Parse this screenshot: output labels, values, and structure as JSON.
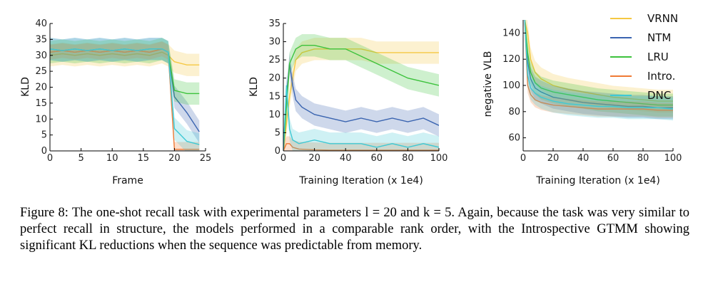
{
  "caption": {
    "label": "Figure 8:",
    "text": "The one-shot recall task with experimental parameters l = 20 and k = 5. Again, because the task was very similar to perfect recall in structure, the models performed in a comparable rank order, with the Introspective GTMM showing significant KL reductions when the sequence was predictable from memory."
  },
  "legend": [
    {
      "name": "VRNN",
      "color": "#f5c842"
    },
    {
      "name": "NTM",
      "color": "#3a64b0"
    },
    {
      "name": "LRU",
      "color": "#3cc23c"
    },
    {
      "name": "Intro.",
      "color": "#f07a35"
    },
    {
      "name": "DNC",
      "color": "#3fc9d4"
    }
  ],
  "chart_data": [
    {
      "type": "line",
      "title": "",
      "xlabel": "Frame",
      "ylabel": "KLD",
      "xlim": [
        0,
        25
      ],
      "ylim": [
        0,
        40
      ],
      "xticks": [
        0,
        5,
        10,
        15,
        20,
        25
      ],
      "yticks": [
        0,
        5,
        10,
        15,
        20,
        25,
        30,
        35,
        40
      ],
      "grid": false,
      "series": [
        {
          "name": "VRNN",
          "color": "#f5c842",
          "x": [
            0,
            2,
            4,
            6,
            8,
            10,
            12,
            14,
            16,
            18,
            19,
            20,
            22,
            24
          ],
          "y": [
            30,
            30.5,
            30,
            30.5,
            30,
            30.5,
            30,
            30.5,
            30,
            31,
            30,
            28,
            27,
            27
          ]
        },
        {
          "name": "NTM",
          "color": "#3a64b0",
          "x": [
            0,
            2,
            4,
            6,
            8,
            10,
            12,
            14,
            16,
            18,
            19,
            20,
            22,
            24
          ],
          "y": [
            32,
            31.5,
            32,
            31.5,
            32,
            31.5,
            32,
            31.5,
            32,
            32,
            31,
            17,
            12,
            6
          ]
        },
        {
          "name": "LRU",
          "color": "#3cc23c",
          "x": [
            0,
            2,
            4,
            6,
            8,
            10,
            12,
            14,
            16,
            18,
            19,
            20,
            22,
            24
          ],
          "y": [
            31,
            31.5,
            31,
            31.5,
            31,
            31.5,
            31,
            31.5,
            31,
            32,
            31,
            19,
            18,
            18
          ]
        },
        {
          "name": "Intro.",
          "color": "#f07a35",
          "x": [
            0,
            2,
            4,
            6,
            8,
            10,
            12,
            14,
            16,
            18,
            19,
            20,
            22,
            24
          ],
          "y": [
            31,
            31.5,
            31,
            31.5,
            31,
            31.5,
            31,
            31.5,
            31,
            32,
            31,
            0.5,
            0.5,
            0.5
          ]
        },
        {
          "name": "DNC",
          "color": "#3fc9d4",
          "x": [
            0,
            2,
            4,
            6,
            8,
            10,
            12,
            14,
            16,
            18,
            19,
            20,
            22,
            24
          ],
          "y": [
            32,
            31.5,
            32,
            31.5,
            32,
            31.5,
            32,
            31.5,
            32,
            32,
            31,
            7,
            3,
            2
          ]
        }
      ]
    },
    {
      "type": "line",
      "title": "",
      "xlabel": "Training Iteration (x 1e4)",
      "ylabel": "KLD",
      "xlim": [
        0,
        100
      ],
      "ylim": [
        0,
        35
      ],
      "xticks": [
        0,
        20,
        40,
        60,
        80,
        100
      ],
      "yticks": [
        0,
        5,
        10,
        15,
        20,
        25,
        30,
        35
      ],
      "grid": false,
      "series": [
        {
          "name": "VRNN",
          "color": "#f5c842",
          "x": [
            0,
            4,
            8,
            12,
            20,
            30,
            40,
            50,
            60,
            70,
            80,
            90,
            100
          ],
          "y": [
            0,
            15,
            25,
            27,
            28,
            28,
            28,
            28,
            27,
            27,
            27,
            27,
            27
          ]
        },
        {
          "name": "NTM",
          "color": "#3a64b0",
          "x": [
            0,
            2,
            4,
            6,
            8,
            12,
            20,
            30,
            40,
            50,
            60,
            70,
            80,
            90,
            100
          ],
          "y": [
            0,
            15,
            24,
            18,
            14,
            12,
            10,
            9,
            8,
            9,
            8,
            9,
            8,
            9,
            7
          ]
        },
        {
          "name": "LRU",
          "color": "#3cc23c",
          "x": [
            0,
            4,
            8,
            12,
            20,
            30,
            40,
            50,
            60,
            70,
            80,
            90,
            100
          ],
          "y": [
            0,
            24,
            28,
            29,
            29,
            28,
            28,
            26,
            24,
            22,
            20,
            19,
            18
          ]
        },
        {
          "name": "Intro.",
          "color": "#f07a35",
          "x": [
            0,
            2,
            4,
            6,
            10,
            20,
            30,
            40,
            60,
            80,
            100
          ],
          "y": [
            0,
            2,
            2,
            1,
            0.5,
            0.3,
            0.2,
            0.2,
            0.2,
            0.2,
            0.2
          ]
        },
        {
          "name": "DNC",
          "color": "#3fc9d4",
          "x": [
            0,
            2,
            4,
            6,
            10,
            20,
            30,
            40,
            50,
            60,
            70,
            80,
            90,
            100
          ],
          "y": [
            0,
            18,
            6,
            3,
            2,
            3,
            2,
            2,
            2,
            1,
            2,
            1,
            2,
            1
          ]
        }
      ]
    },
    {
      "type": "line",
      "title": "",
      "xlabel": "Training Iteration (x 1e4)",
      "ylabel": "negative VLB",
      "xlim": [
        0,
        100
      ],
      "ylim": [
        50,
        150
      ],
      "xticks": [
        0,
        20,
        40,
        60,
        80,
        100
      ],
      "yticks": [
        60,
        80,
        100,
        120,
        140
      ],
      "grid": false,
      "legend": "top-right",
      "series": [
        {
          "name": "VRNN",
          "color": "#f5c842",
          "x": [
            1,
            3,
            5,
            8,
            12,
            20,
            30,
            40,
            50,
            60,
            70,
            80,
            90,
            100
          ],
          "y": [
            150,
            140,
            120,
            110,
            105,
            100,
            97,
            95,
            93,
            91,
            90,
            89,
            88,
            88
          ]
        },
        {
          "name": "NTM",
          "color": "#3a64b0",
          "x": [
            1,
            3,
            5,
            8,
            12,
            20,
            30,
            40,
            50,
            60,
            70,
            80,
            90,
            100
          ],
          "y": [
            150,
            118,
            105,
            98,
            95,
            91,
            89,
            87,
            86,
            85,
            84,
            84,
            83,
            83
          ]
        },
        {
          "name": "LRU",
          "color": "#3cc23c",
          "x": [
            1,
            3,
            5,
            8,
            12,
            20,
            30,
            40,
            50,
            60,
            70,
            80,
            90,
            100
          ],
          "y": [
            150,
            125,
            110,
            102,
            98,
            95,
            93,
            91,
            89,
            88,
            87,
            86,
            85,
            85
          ]
        },
        {
          "name": "Intro.",
          "color": "#f07a35",
          "x": [
            1,
            3,
            5,
            8,
            12,
            20,
            30,
            40,
            50,
            60,
            70,
            80,
            90,
            100
          ],
          "y": [
            150,
            100,
            93,
            89,
            87,
            85,
            84,
            83,
            82,
            82,
            82,
            82,
            81,
            81
          ]
        },
        {
          "name": "DNC",
          "color": "#3fc9d4",
          "x": [
            1,
            3,
            5,
            8,
            12,
            20,
            30,
            40,
            50,
            60,
            70,
            80,
            90,
            100
          ],
          "y": [
            150,
            108,
            98,
            94,
            91,
            88,
            86,
            85,
            84,
            84,
            83,
            83,
            83,
            82
          ]
        }
      ]
    }
  ]
}
